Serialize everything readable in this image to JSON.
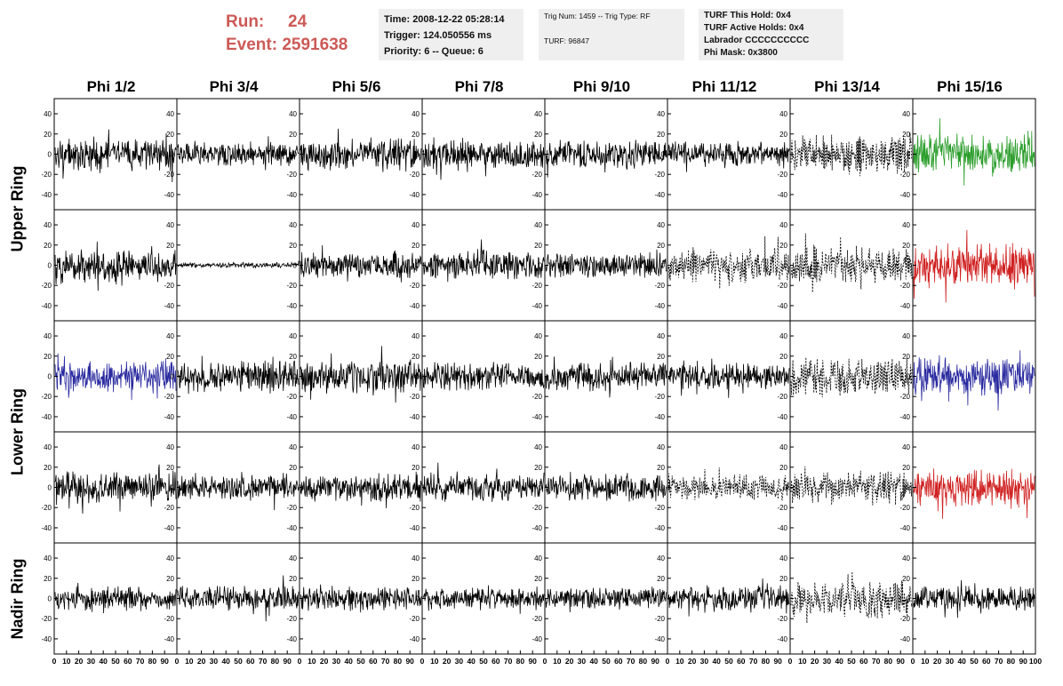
{
  "header": {
    "run_label": "Run:",
    "run_value": "24",
    "event_label": "Event:",
    "event_value": "2591638"
  },
  "info_time": {
    "time": "Time: 2008-12-22 05:28:14",
    "trigger": "Trigger: 124.050556 ms",
    "priority": "Priority: 6 -- Queue: 6"
  },
  "info_trig": {
    "trig": "Trig Num: 1459 -- Trig Type: RF",
    "turf": "TURF: 96847"
  },
  "info_turf": {
    "this_hold": "TURF This Hold: 0x4",
    "active_holds": "TURF Active Holds: 0x4",
    "labrador": "Labrador CCCCCCCCCC",
    "phi_mask": "Phi Mask: 0x3800"
  },
  "columns": [
    "Phi 1/2",
    "Phi 3/4",
    "Phi 5/6",
    "Phi 7/8",
    "Phi 9/10",
    "Phi 11/12",
    "Phi 13/14",
    "Phi 15/16"
  ],
  "rows": [
    "Upper Ring",
    "Lower Ring",
    "Nadir Ring"
  ],
  "chart_data": {
    "type": "line",
    "xlim": [
      0,
      100
    ],
    "ylim": [
      -55,
      55
    ],
    "x_ticks": [
      0,
      10,
      20,
      30,
      40,
      50,
      60,
      70,
      80,
      90,
      100
    ],
    "y_ticks": [
      -40,
      -20,
      0,
      20,
      40
    ],
    "colors": {
      "normal": "#000000",
      "triggered_dashed": "#000000",
      "green": "#2a9d2a",
      "red": "#d02020",
      "blue": "#2a2aa0"
    },
    "panels": [
      {
        "row": 0,
        "col": 0,
        "style": "solid",
        "color": "normal",
        "amp": 18
      },
      {
        "row": 0,
        "col": 1,
        "style": "solid",
        "color": "normal",
        "amp": 14
      },
      {
        "row": 0,
        "col": 2,
        "style": "solid",
        "color": "normal",
        "amp": 18
      },
      {
        "row": 0,
        "col": 3,
        "style": "solid",
        "color": "normal",
        "amp": 17
      },
      {
        "row": 0,
        "col": 4,
        "style": "solid",
        "color": "normal",
        "amp": 16
      },
      {
        "row": 0,
        "col": 5,
        "style": "solid",
        "color": "normal",
        "amp": 14
      },
      {
        "row": 0,
        "col": 6,
        "style": "dashed",
        "color": "triggered_dashed",
        "amp": 22
      },
      {
        "row": 0,
        "col": 7,
        "style": "solid",
        "color": "green",
        "amp": 24
      },
      {
        "row": 1,
        "col": 0,
        "style": "solid",
        "color": "normal",
        "amp": 20
      },
      {
        "row": 1,
        "col": 1,
        "style": "solid",
        "color": "normal",
        "amp": 3
      },
      {
        "row": 1,
        "col": 2,
        "style": "solid",
        "color": "normal",
        "amp": 15
      },
      {
        "row": 1,
        "col": 3,
        "style": "solid",
        "color": "normal",
        "amp": 17
      },
      {
        "row": 1,
        "col": 4,
        "style": "solid",
        "color": "normal",
        "amp": 15
      },
      {
        "row": 1,
        "col": 5,
        "style": "dashed",
        "color": "triggered_dashed",
        "amp": 20
      },
      {
        "row": 1,
        "col": 6,
        "style": "dashed",
        "color": "triggered_dashed",
        "amp": 22
      },
      {
        "row": 1,
        "col": 7,
        "style": "solid",
        "color": "red",
        "amp": 24
      },
      {
        "row": 2,
        "col": 0,
        "style": "solid",
        "color": "blue",
        "amp": 18
      },
      {
        "row": 2,
        "col": 1,
        "style": "solid",
        "color": "normal",
        "amp": 18
      },
      {
        "row": 2,
        "col": 2,
        "style": "solid",
        "color": "normal",
        "amp": 20
      },
      {
        "row": 2,
        "col": 3,
        "style": "solid",
        "color": "normal",
        "amp": 16
      },
      {
        "row": 2,
        "col": 4,
        "style": "solid",
        "color": "normal",
        "amp": 16
      },
      {
        "row": 2,
        "col": 5,
        "style": "solid",
        "color": "normal",
        "amp": 14
      },
      {
        "row": 2,
        "col": 6,
        "style": "dashed",
        "color": "triggered_dashed",
        "amp": 22
      },
      {
        "row": 2,
        "col": 7,
        "style": "solid",
        "color": "blue",
        "amp": 22
      },
      {
        "row": 3,
        "col": 0,
        "style": "solid",
        "color": "normal",
        "amp": 18
      },
      {
        "row": 3,
        "col": 1,
        "style": "solid",
        "color": "normal",
        "amp": 14
      },
      {
        "row": 3,
        "col": 2,
        "style": "solid",
        "color": "normal",
        "amp": 15
      },
      {
        "row": 3,
        "col": 3,
        "style": "solid",
        "color": "normal",
        "amp": 16
      },
      {
        "row": 3,
        "col": 4,
        "style": "solid",
        "color": "normal",
        "amp": 15
      },
      {
        "row": 3,
        "col": 5,
        "style": "dashed",
        "color": "triggered_dashed",
        "amp": 14
      },
      {
        "row": 3,
        "col": 6,
        "style": "dashed",
        "color": "triggered_dashed",
        "amp": 18
      },
      {
        "row": 3,
        "col": 7,
        "style": "solid",
        "color": "red",
        "amp": 22
      },
      {
        "row": 4,
        "col": 0,
        "style": "solid",
        "color": "normal",
        "amp": 14
      },
      {
        "row": 4,
        "col": 1,
        "style": "solid",
        "color": "normal",
        "amp": 14
      },
      {
        "row": 4,
        "col": 2,
        "style": "solid",
        "color": "normal",
        "amp": 14
      },
      {
        "row": 4,
        "col": 3,
        "style": "solid",
        "color": "normal",
        "amp": 12
      },
      {
        "row": 4,
        "col": 4,
        "style": "solid",
        "color": "normal",
        "amp": 13
      },
      {
        "row": 4,
        "col": 5,
        "style": "solid",
        "color": "normal",
        "amp": 14
      },
      {
        "row": 4,
        "col": 6,
        "style": "dashed",
        "color": "triggered_dashed",
        "amp": 22
      },
      {
        "row": 4,
        "col": 7,
        "style": "solid",
        "color": "normal",
        "amp": 15
      }
    ]
  }
}
